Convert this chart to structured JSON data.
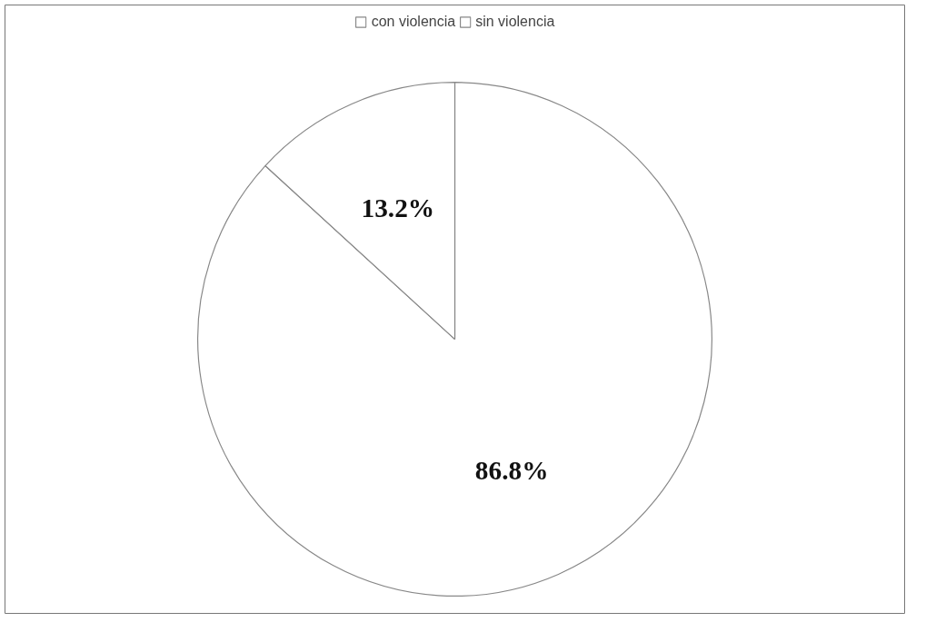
{
  "chart_data": {
    "type": "pie",
    "categories": [
      "con violencia",
      "sin violencia"
    ],
    "values": [
      86.8,
      13.2
    ],
    "value_labels": [
      "86.8%",
      "13.2%"
    ],
    "colors": [
      "#ffffff",
      "#ffffff"
    ],
    "legend": "top"
  }
}
